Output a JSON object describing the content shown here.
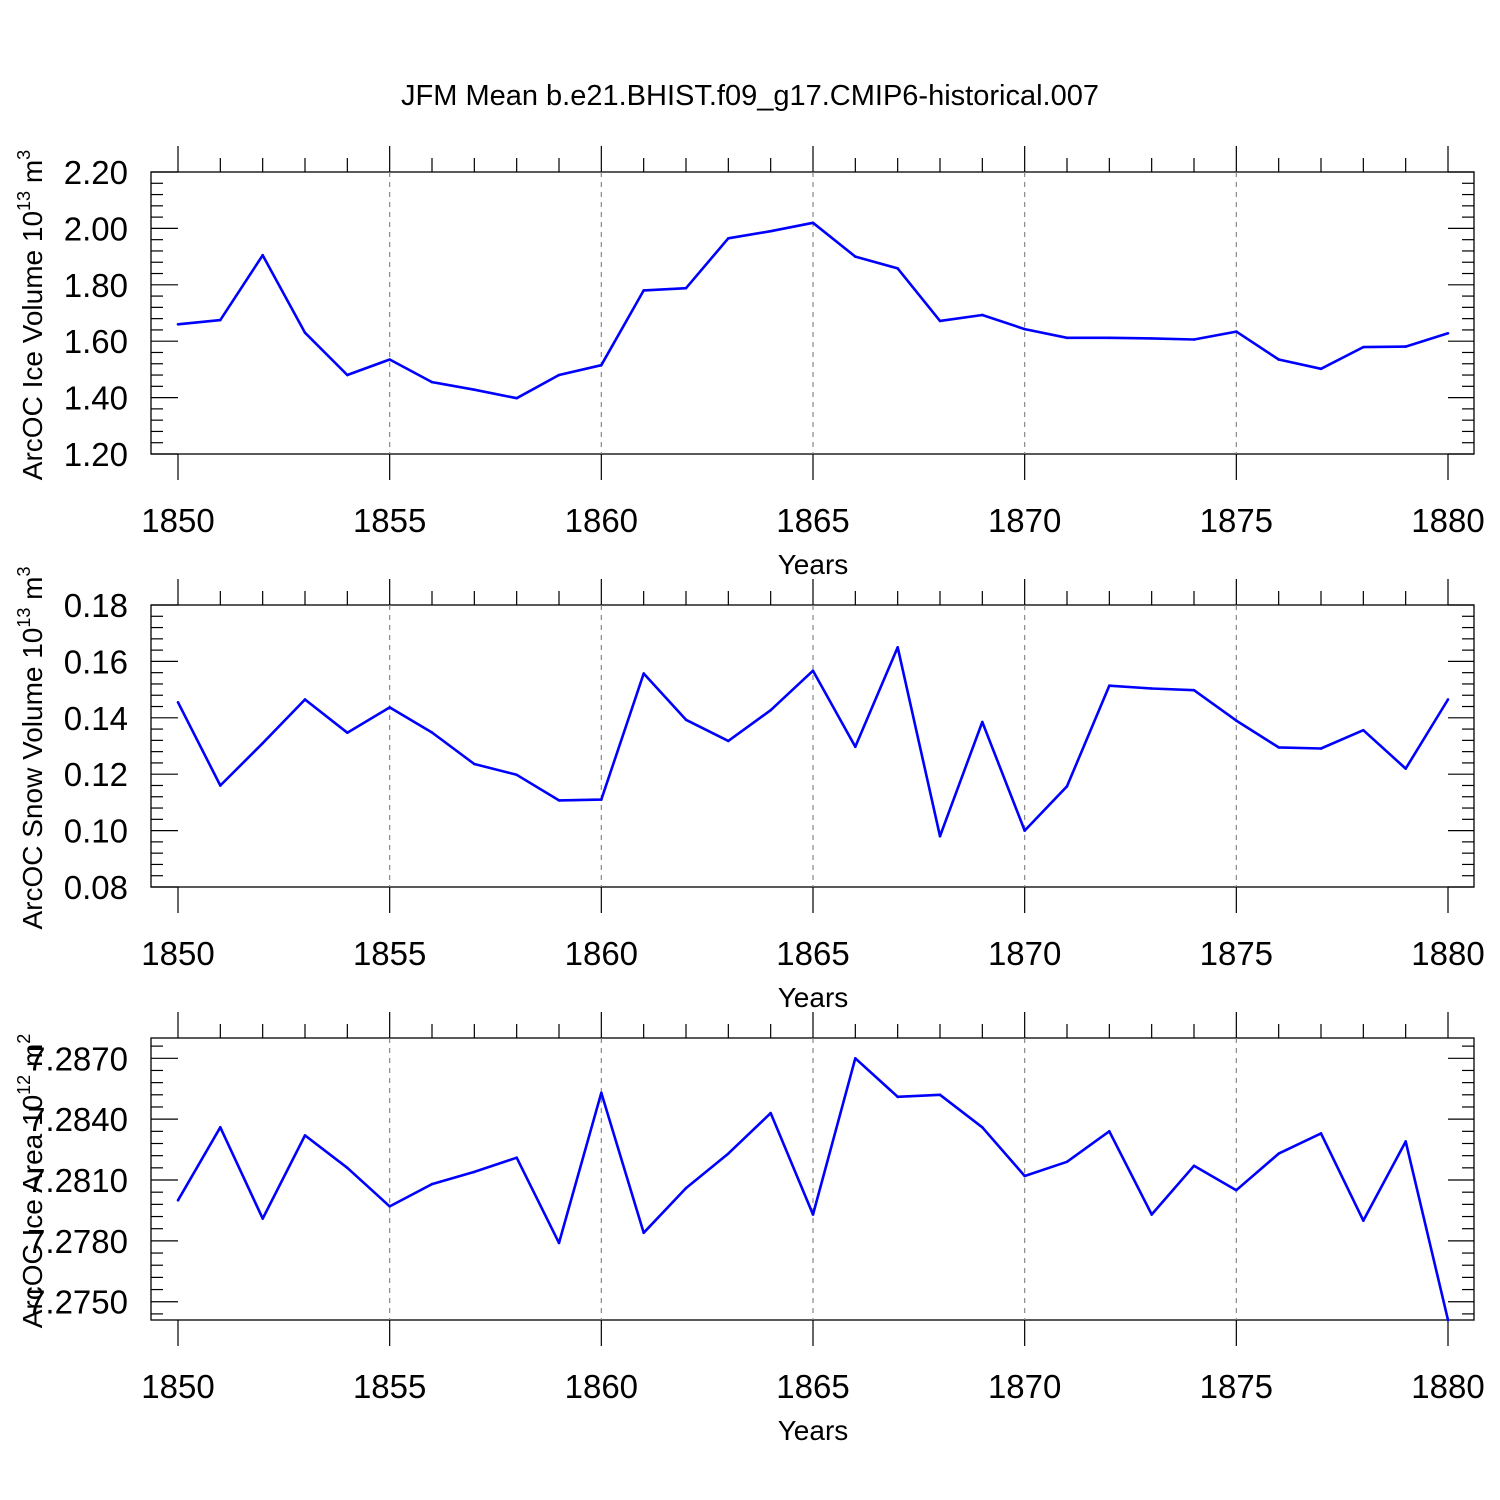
{
  "figure": {
    "title": "JFM Mean b.e21.BHIST.f09_g17.CMIP6-historical.007",
    "line_color": "#0000ff"
  },
  "chart_data": [
    {
      "type": "line",
      "title": "JFM Mean b.e21.BHIST.f09_g17.CMIP6-historical.007",
      "xlabel": "Years",
      "ylabel": "ArcOC Ice Volume 10",
      "ylabel_exp": "13",
      "ylabel_unit": " m",
      "ylabel_unit_exp": "3",
      "xlim": [
        1850,
        1880
      ],
      "ylim": [
        1.2,
        2.2
      ],
      "xticks": [
        1850,
        1855,
        1860,
        1865,
        1870,
        1875,
        1880
      ],
      "yticks": [
        1.2,
        1.4,
        1.6,
        1.8,
        2.0,
        2.2
      ],
      "ytick_labels": [
        "1.20",
        "1.40",
        "1.60",
        "1.80",
        "2.00",
        "2.20"
      ],
      "grid": "vertical dashed at major x ticks",
      "x": [
        1850,
        1851,
        1852,
        1853,
        1854,
        1855,
        1856,
        1857,
        1858,
        1859,
        1860,
        1861,
        1862,
        1863,
        1864,
        1865,
        1866,
        1867,
        1868,
        1869,
        1870,
        1871,
        1872,
        1873,
        1874,
        1875,
        1876,
        1877,
        1878,
        1879,
        1880
      ],
      "values": [
        1.66,
        1.675,
        1.905,
        1.63,
        1.48,
        1.535,
        1.455,
        1.428,
        1.398,
        1.48,
        1.515,
        1.78,
        1.788,
        1.965,
        1.99,
        2.02,
        1.9,
        1.858,
        1.672,
        1.693,
        1.643,
        1.612,
        1.612,
        1.61,
        1.606,
        1.634,
        1.535,
        1.502,
        1.579,
        1.581,
        1.628
      ]
    },
    {
      "type": "line",
      "xlabel": "Years",
      "ylabel": "ArcOC Snow Volume 10",
      "ylabel_exp": "13",
      "ylabel_unit": " m",
      "ylabel_unit_exp": "3",
      "xlim": [
        1850,
        1880
      ],
      "ylim": [
        0.08,
        0.18
      ],
      "xticks": [
        1850,
        1855,
        1860,
        1865,
        1870,
        1875,
        1880
      ],
      "yticks": [
        0.08,
        0.1,
        0.12,
        0.14,
        0.16,
        0.18
      ],
      "ytick_labels": [
        "0.08",
        "0.10",
        "0.12",
        "0.14",
        "0.16",
        "0.18"
      ],
      "grid": "vertical dashed at major x ticks",
      "x": [
        1850,
        1851,
        1852,
        1853,
        1854,
        1855,
        1856,
        1857,
        1858,
        1859,
        1860,
        1861,
        1862,
        1863,
        1864,
        1865,
        1866,
        1867,
        1868,
        1869,
        1870,
        1871,
        1872,
        1873,
        1874,
        1875,
        1876,
        1877,
        1878,
        1879,
        1880
      ],
      "values": [
        0.1455,
        0.116,
        0.131,
        0.1465,
        0.1347,
        0.1437,
        0.1348,
        0.1236,
        0.1198,
        0.1107,
        0.111,
        0.1557,
        0.1393,
        0.1318,
        0.1427,
        0.1567,
        0.1297,
        0.165,
        0.098,
        0.1385,
        0.1,
        0.1157,
        0.1514,
        0.1504,
        0.1498,
        0.139,
        0.1295,
        0.1291,
        0.1356,
        0.122,
        0.1465
      ]
    },
    {
      "type": "line",
      "xlabel": "Years",
      "ylabel": "ArcOC Ice Area 10",
      "ylabel_exp": "12",
      "ylabel_unit": " m",
      "ylabel_unit_exp": "2",
      "xlim": [
        1850,
        1880
      ],
      "ylim": [
        7.2741,
        7.288
      ],
      "xticks": [
        1850,
        1855,
        1860,
        1865,
        1870,
        1875,
        1880
      ],
      "yticks": [
        7.275,
        7.278,
        7.281,
        7.284,
        7.287
      ],
      "ytick_labels": [
        "7.2750",
        "7.2780",
        "7.2810",
        "7.2840",
        "7.2870"
      ],
      "grid": "vertical dashed at major x ticks",
      "x": [
        1850,
        1851,
        1852,
        1853,
        1854,
        1855,
        1856,
        1857,
        1858,
        1859,
        1860,
        1861,
        1862,
        1863,
        1864,
        1865,
        1866,
        1867,
        1868,
        1869,
        1870,
        1871,
        1872,
        1873,
        1874,
        1875,
        1876,
        1877,
        1878,
        1879,
        1880
      ],
      "values": [
        7.28,
        7.2836,
        7.2791,
        7.2832,
        7.2816,
        7.2797,
        7.2808,
        7.2814,
        7.2821,
        7.2779,
        7.2853,
        7.2784,
        7.2806,
        7.2823,
        7.2843,
        7.2793,
        7.287,
        7.2851,
        7.2852,
        7.2836,
        7.2812,
        7.2819,
        7.2834,
        7.2793,
        7.2817,
        7.2805,
        7.2823,
        7.2833,
        7.279,
        7.2829,
        7.2741
      ]
    }
  ]
}
